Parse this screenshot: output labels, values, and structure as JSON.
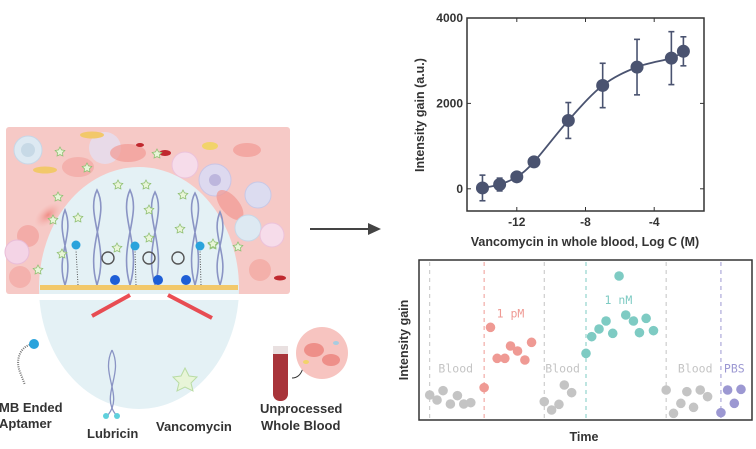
{
  "illustration": {
    "legend": [
      {
        "label_lines": [
          "MB Ended",
          "Aptamer"
        ]
      },
      {
        "label_lines": [
          "Lubricin"
        ]
      },
      {
        "label_lines": [
          "Vancomycin"
        ]
      },
      {
        "label_lines": [
          "Unprocessed",
          "Whole Blood"
        ]
      }
    ],
    "colors": {
      "background": "#f6c9c6",
      "dome": "#e4f1f5",
      "electrode": "#f2c86a",
      "beam": "#e8242a",
      "lubricin": "#8a94c4",
      "mb": "#2aa3dc",
      "star": "#e8f5d8"
    }
  },
  "chart_data": [
    {
      "type": "line",
      "xlabel": "Vancomycin in whole blood, Log C (M)",
      "ylabel": "Intensity gain (a.u.)",
      "xlim": [
        -14.9,
        -1.1
      ],
      "ylim": [
        -520,
        4000
      ],
      "xticks": [
        -12,
        -8,
        -4
      ],
      "yticks": [
        0,
        2000,
        4000
      ],
      "color": "#4a5370",
      "points": [
        {
          "x": -14,
          "y": 20,
          "err": 300
        },
        {
          "x": -13,
          "y": 100,
          "err": 150
        },
        {
          "x": -12,
          "y": 280,
          "err": 100
        },
        {
          "x": -11,
          "y": 630,
          "err": 100
        },
        {
          "x": -9,
          "y": 1600,
          "err": 420
        },
        {
          "x": -7,
          "y": 2420,
          "err": 520
        },
        {
          "x": -5,
          "y": 2850,
          "err": 650
        },
        {
          "x": -3,
          "y": 3060,
          "err": 620
        },
        {
          "x": -2.3,
          "y": 3220,
          "err": 340
        }
      ]
    },
    {
      "type": "scatter",
      "xlabel": "Time",
      "ylabel": "Intensity gain",
      "xlim": [
        0,
        99.7
      ],
      "ylim": [
        0,
        48
      ],
      "series": [
        {
          "name": "Blood",
          "color": "#c4c4c4",
          "label_pos": [
            11,
            15.5
          ],
          "boundary": 3.2,
          "x": [
            3.2,
            5.4,
            7.2,
            9.4,
            11.5,
            13.4,
            15.5
          ],
          "y": [
            7.5,
            6,
            8.8,
            4.8,
            7.3,
            4.8,
            5.2
          ]
        },
        {
          "name": "1 pM",
          "color": "#ef9a94",
          "label_pos": [
            27.4,
            32
          ],
          "boundary": 19.5,
          "x": [
            19.5,
            21.4,
            23.4,
            25.7,
            27.4,
            29.5,
            31.7,
            33.7
          ],
          "y": [
            9.7,
            27.8,
            18.5,
            18.5,
            22.2,
            20.7,
            18,
            23.3
          ]
        },
        {
          "name": "Blood",
          "color": "#c4c4c4",
          "label_pos": [
            43,
            15.5
          ],
          "boundary": 37.5,
          "x": [
            37.5,
            39.7,
            41.9,
            43.5,
            45.7
          ],
          "y": [
            5.5,
            3,
            4.7,
            10.5,
            8.2
          ]
        },
        {
          "name": "1 nM",
          "color": "#7ecbc3",
          "label_pos": [
            59.7,
            36
          ],
          "boundary": 50,
          "x": [
            50,
            51.7,
            53.9,
            56,
            58,
            59.9,
            61.9,
            64.2,
            66,
            68,
            70.2
          ],
          "y": [
            20,
            25,
            27.3,
            29.7,
            26,
            43.2,
            31.5,
            29.7,
            26.2,
            30.5,
            26.8
          ]
        },
        {
          "name": "Blood",
          "color": "#c4c4c4",
          "label_pos": [
            82.7,
            15.5
          ],
          "boundary": 74,
          "x": [
            74,
            76.2,
            78.4,
            80.2,
            82.2,
            84.2,
            86.4
          ],
          "y": [
            9,
            2,
            5,
            8.5,
            3.8,
            9,
            7
          ]
        },
        {
          "name": "PBS",
          "color": "#9c98d2",
          "label_pos": [
            94.4,
            15.5
          ],
          "boundary": 90.4,
          "x": [
            90.4,
            92.4,
            94.4,
            96.4
          ],
          "y": [
            2.2,
            9,
            5,
            9.2
          ]
        }
      ]
    }
  ]
}
